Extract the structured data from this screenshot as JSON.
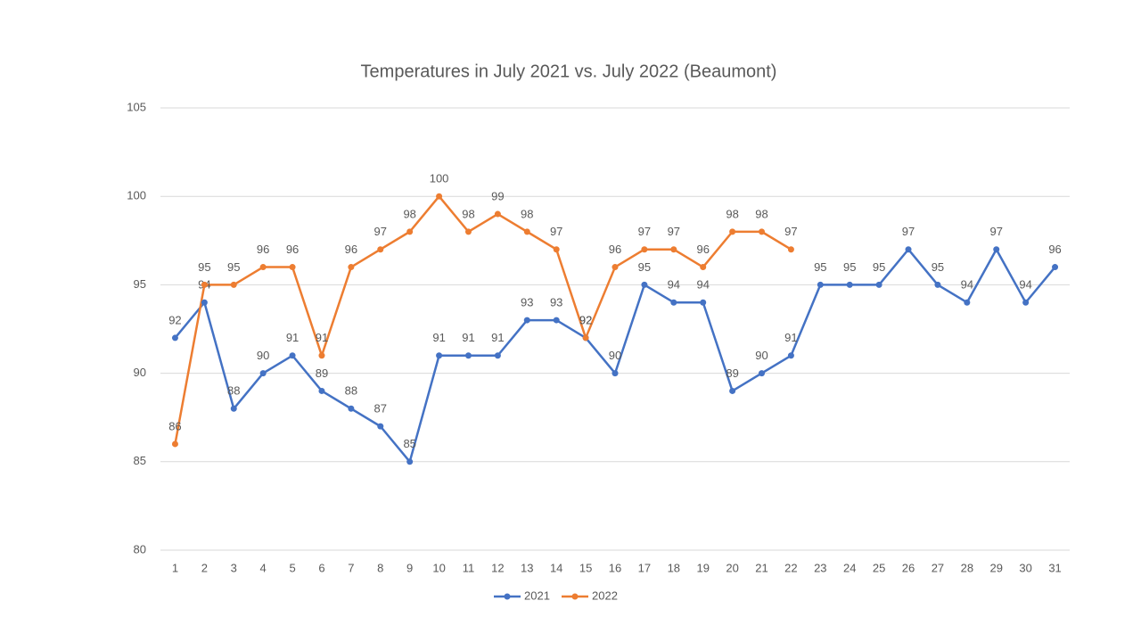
{
  "chart_data": {
    "type": "line",
    "title": "Temperatures in July 2021 vs. July 2022 (Beaumont)",
    "categories": [
      "1",
      "2",
      "3",
      "4",
      "5",
      "6",
      "7",
      "8",
      "9",
      "10",
      "11",
      "12",
      "13",
      "14",
      "15",
      "16",
      "17",
      "18",
      "19",
      "20",
      "21",
      "22",
      "23",
      "24",
      "25",
      "26",
      "27",
      "28",
      "29",
      "30",
      "31"
    ],
    "series": [
      {
        "name": "2021",
        "color": "#4472c4",
        "values": [
          92,
          94,
          88,
          90,
          91,
          89,
          88,
          87,
          85,
          91,
          91,
          91,
          93,
          93,
          92,
          90,
          95,
          94,
          94,
          89,
          90,
          91,
          95,
          95,
          95,
          97,
          95,
          94,
          97,
          94,
          96
        ]
      },
      {
        "name": "2022",
        "color": "#ed7d31",
        "values": [
          86,
          95,
          95,
          96,
          96,
          91,
          96,
          97,
          98,
          100,
          98,
          99,
          98,
          97,
          92,
          96,
          97,
          97,
          96,
          98,
          98,
          97,
          null,
          null,
          null,
          null,
          null,
          null,
          null,
          null,
          null
        ]
      }
    ],
    "ylim": [
      80,
      105
    ],
    "yticks": [
      80,
      85,
      90,
      95,
      100,
      105
    ],
    "grid": true,
    "legend": "bottom"
  }
}
